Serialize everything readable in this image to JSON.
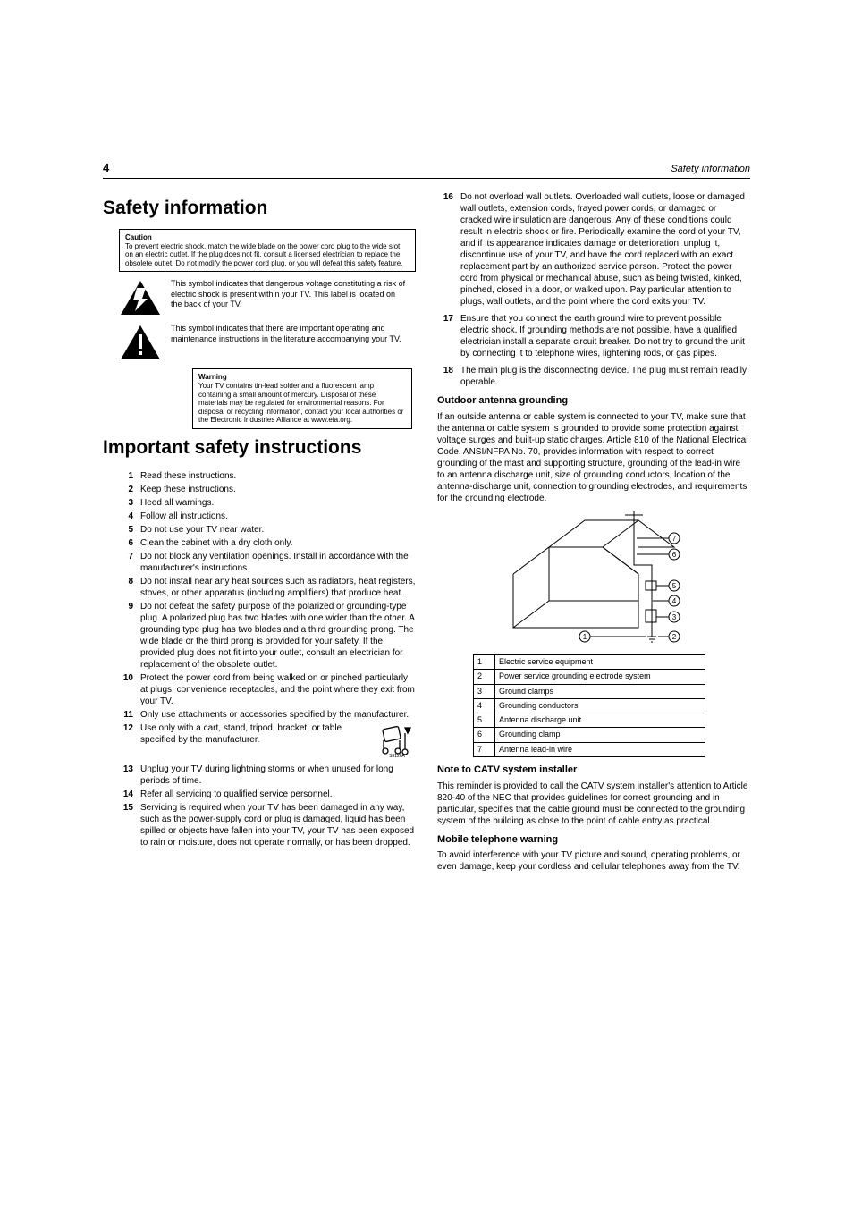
{
  "header": {
    "page": "4",
    "title": "Safety information"
  },
  "h1_safety": "Safety information",
  "caution_box": {
    "title": "Caution",
    "body": "To prevent electric shock, match the wide blade on the power cord plug to the wide slot on an electric outlet. If the plug does not fit, consult a licensed electrician to replace the obsolete outlet. Do not modify the power cord plug, or you will defeat this safety feature."
  },
  "volt_sym": "This symbol indicates that dangerous voltage constituting a risk of electric shock is present within your TV. This label is located on the back of your TV.",
  "excl_sym": "This symbol indicates that there are important operating and maintenance instructions in the literature accompanying your TV.",
  "warning_box": {
    "title": "Warning",
    "body": "Your TV contains tin-lead solder and a fluorescent lamp containing a small amount of mercury. Disposal of these materials may be regulated for environmental reasons. For disposal or recycling information, contact your local authorities or the Electronic Industries Alliance at www.eia.org."
  },
  "h1_important": "Important safety instructions",
  "instructions": [
    "Read these instructions.",
    "Keep these instructions.",
    "Heed all warnings.",
    "Follow all instructions.",
    "Do not use your TV near water.",
    "Clean the cabinet with a dry cloth only.",
    "Do not block any ventilation openings. Install in accordance with the manufacturer's instructions.",
    "Do not install near any heat sources such as radiators, heat registers, stoves, or other apparatus (including amplifiers) that produce heat.",
    "Do not defeat the safety purpose of the polarized or grounding-type plug. A polarized plug has two blades with one wider than the other. A grounding type plug has two blades and a third grounding prong. The wide blade or the third prong is provided for your safety. If the provided plug does not fit into your outlet, consult an electrician for replacement of the obsolete outlet.",
    "Protect the power cord from being walked on or pinched particularly at plugs, convenience receptacles, and the point where they exit from your TV.",
    "Only use attachments or accessories specified by the manufacturer.",
    "Use only with a cart, stand, tripod, bracket, or table specified by the manufacturer.",
    "Unplug your TV during lightning storms or when unused for long periods of time.",
    "Refer all servicing to qualified service personnel.",
    "Servicing is required when your TV has been damaged in any way, such as the power-supply cord or plug is damaged, liquid has been spilled or objects have fallen into your TV, your TV has been exposed to rain or moisture, does not operate normally, or has been dropped."
  ],
  "instructions_right": [
    {
      "n": "16",
      "t": "Do not overload wall outlets. Overloaded wall outlets, loose or damaged wall outlets, extension cords, frayed power cords, or damaged or cracked wire insulation are dangerous. Any of these conditions could result in electric shock or fire. Periodically examine the cord of your TV, and if its appearance indicates damage or deterioration, unplug it, discontinue use of your TV, and have the cord replaced with an exact replacement part by an authorized service person. Protect the power cord from physical or mechanical abuse, such as being twisted, kinked, pinched, closed in a door, or walked upon. Pay particular attention to plugs, wall outlets, and the point where the cord exits your TV."
    },
    {
      "n": "17",
      "t": "Ensure that you connect the earth ground wire to prevent possible electric shock. If grounding methods are not possible, have a qualified electrician install a separate circuit breaker. Do not try to ground the unit by connecting it to telephone wires, lightening rods, or gas pipes."
    },
    {
      "n": "18",
      "t": "The main plug is the disconnecting device. The plug must remain readily operable."
    }
  ],
  "outdoor": {
    "h": "Outdoor antenna grounding",
    "p": "If an outside antenna or cable system is connected to your TV, make sure that the antenna or cable system is grounded to provide some protection against voltage surges and built-up static charges. Article 810 of the National Electrical Code, ANSI/NFPA No. 70, provides information with respect to correct grounding of the mast and supporting structure, grounding of the lead-in wire to an antenna discharge unit, size of grounding conductors, location of the antenna-discharge unit, connection to grounding electrodes, and requirements for the grounding electrode."
  },
  "table_rows": [
    [
      "1",
      "Electric service equipment"
    ],
    [
      "2",
      "Power service grounding electrode system"
    ],
    [
      "3",
      "Ground clamps"
    ],
    [
      "4",
      "Grounding conductors"
    ],
    [
      "5",
      "Antenna discharge unit"
    ],
    [
      "6",
      "Grounding clamp"
    ],
    [
      "7",
      "Antenna lead-in wire"
    ]
  ],
  "catv": {
    "h": "Note to CATV system installer",
    "p": "This reminder is provided to call the CATV system installer's attention to Article 820-40 of the NEC that provides guidelines for correct grounding and in particular, specifies that the cable ground must be connected to the grounding system of the building as close to the point of cable entry as practical."
  },
  "mobile": {
    "h": "Mobile telephone warning",
    "p": "To avoid interference with your TV picture and sound, operating problems, or even damage, keep your cordless and cellular telephones away from the TV."
  }
}
